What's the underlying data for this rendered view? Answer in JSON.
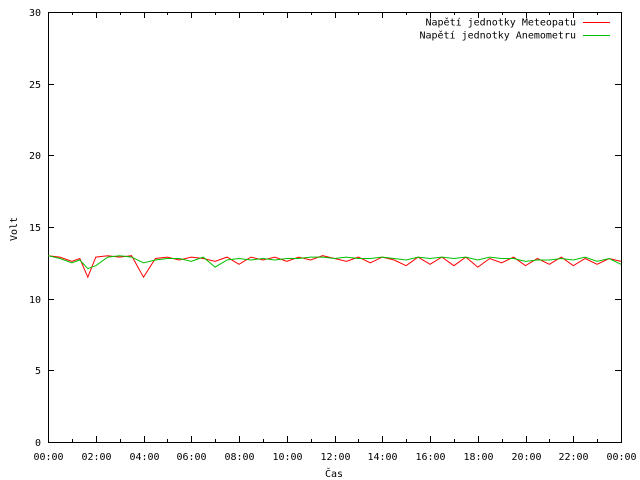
{
  "chart_data": {
    "type": "line",
    "xlabel": "Čas",
    "ylabel": "Volt",
    "ylim": [
      0,
      30
    ],
    "yticks": [
      "0",
      "5",
      "10",
      "15",
      "20",
      "25",
      "30"
    ],
    "xlim": [
      "00:00",
      "24:00"
    ],
    "xticks": [
      "00:00",
      "02:00",
      "04:00",
      "06:00",
      "08:00",
      "10:00",
      "12:00",
      "14:00",
      "16:00",
      "18:00",
      "20:00",
      "22:00",
      "00:00"
    ],
    "grid": false,
    "legend_position": "top-right",
    "series": [
      {
        "name": "Napětí jednotky Meteopatu",
        "color": "#ff0000",
        "x": [
          "00:00",
          "00:30",
          "01:00",
          "01:20",
          "01:40",
          "02:00",
          "02:30",
          "03:00",
          "03:30",
          "04:00",
          "04:30",
          "05:00",
          "05:30",
          "06:00",
          "06:30",
          "07:00",
          "07:30",
          "08:00",
          "08:30",
          "09:00",
          "09:30",
          "10:00",
          "10:30",
          "11:00",
          "11:30",
          "12:00",
          "12:30",
          "13:00",
          "13:30",
          "14:00",
          "14:30",
          "15:00",
          "15:30",
          "16:00",
          "16:30",
          "17:00",
          "17:30",
          "18:00",
          "18:30",
          "19:00",
          "19:30",
          "20:00",
          "20:30",
          "21:00",
          "21:30",
          "22:00",
          "22:30",
          "23:00",
          "23:30",
          "24:00"
        ],
        "values": [
          13.0,
          12.9,
          12.6,
          12.8,
          11.5,
          12.9,
          13.0,
          12.9,
          13.0,
          11.5,
          12.8,
          12.9,
          12.7,
          12.9,
          12.8,
          12.6,
          12.9,
          12.4,
          12.9,
          12.7,
          12.9,
          12.6,
          12.9,
          12.7,
          13.0,
          12.8,
          12.6,
          12.9,
          12.5,
          12.9,
          12.7,
          12.3,
          12.9,
          12.4,
          12.9,
          12.3,
          12.9,
          12.2,
          12.8,
          12.5,
          12.9,
          12.3,
          12.8,
          12.4,
          12.9,
          12.3,
          12.8,
          12.4,
          12.8,
          12.6
        ]
      },
      {
        "name": "Napětí jednotky Anemometru",
        "color": "#00c000",
        "x": [
          "00:00",
          "00:30",
          "01:00",
          "01:20",
          "01:40",
          "02:00",
          "02:30",
          "03:00",
          "03:30",
          "04:00",
          "04:30",
          "05:00",
          "05:30",
          "06:00",
          "06:30",
          "07:00",
          "07:30",
          "08:00",
          "08:30",
          "09:00",
          "09:30",
          "10:00",
          "10:30",
          "11:00",
          "11:30",
          "12:00",
          "12:30",
          "13:00",
          "13:30",
          "14:00",
          "14:30",
          "15:00",
          "15:30",
          "16:00",
          "16:30",
          "17:00",
          "17:30",
          "18:00",
          "18:30",
          "19:00",
          "19:30",
          "20:00",
          "20:30",
          "21:00",
          "21:30",
          "22:00",
          "22:30",
          "23:00",
          "23:30",
          "24:00"
        ],
        "values": [
          13.0,
          12.8,
          12.5,
          12.7,
          12.1,
          12.3,
          12.9,
          13.0,
          12.9,
          12.5,
          12.7,
          12.8,
          12.8,
          12.6,
          12.9,
          12.2,
          12.7,
          12.8,
          12.7,
          12.8,
          12.7,
          12.8,
          12.8,
          12.9,
          12.9,
          12.8,
          12.9,
          12.8,
          12.8,
          12.9,
          12.8,
          12.7,
          12.9,
          12.8,
          12.9,
          12.8,
          12.9,
          12.7,
          12.9,
          12.8,
          12.8,
          12.6,
          12.7,
          12.7,
          12.8,
          12.7,
          12.9,
          12.6,
          12.8,
          12.4
        ]
      }
    ]
  }
}
